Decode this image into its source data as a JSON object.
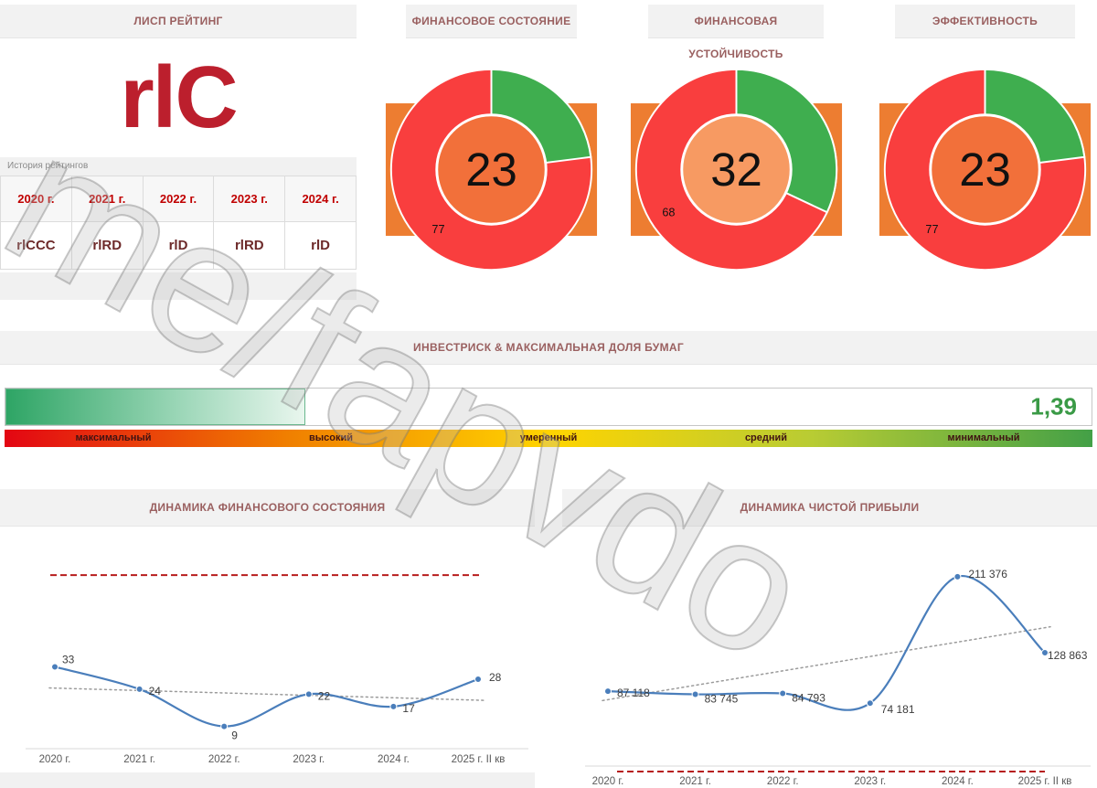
{
  "watermark": "t.me/fapvdo",
  "colors": {
    "accent_red": "#bc1f2d",
    "header_text": "#9a6060",
    "line_blue": "#4a7ebb",
    "ref_line_red": "#b71c1c",
    "gauge_value_green": "#3a9a46",
    "donut_red": "#f93e3e",
    "donut_green": "#3fae4f",
    "donut_bg_orange": "#ed7d31"
  },
  "rating": {
    "title": "ЛИСП РЕЙТИНГ",
    "current": "rlC",
    "history_label": "История рейтингов",
    "history": [
      {
        "year": "2020 г.",
        "value": "rlCCC"
      },
      {
        "year": "2021 г.",
        "value": "rlRD"
      },
      {
        "year": "2022 г.",
        "value": "rlD"
      },
      {
        "year": "2023 г.",
        "value": "rlRD"
      },
      {
        "year": "2024 г.",
        "value": "rlD"
      }
    ]
  },
  "chart_data": [
    {
      "id": "financial_state",
      "type": "pie",
      "title": "ФИНАНСОВОЕ СОСТОЯНИЕ",
      "slices": [
        {
          "label": "23",
          "value": 23,
          "color": "#3fae4f"
        },
        {
          "label": "77",
          "value": 77,
          "color": "#f93e3e"
        }
      ],
      "center_label": "23",
      "center_color": "#f2703a",
      "background_square_color": "#ed7d31"
    },
    {
      "id": "financial_stability",
      "type": "pie",
      "title": "ФИНАНСОВАЯ УСТОЙЧИВОСТЬ",
      "slices": [
        {
          "label": "32",
          "value": 32,
          "color": "#3fae4f"
        },
        {
          "label": "68",
          "value": 68,
          "color": "#f93e3e"
        }
      ],
      "center_label": "32",
      "center_color": "#f79a62",
      "background_square_color": "#ed7d31"
    },
    {
      "id": "efficiency",
      "type": "pie",
      "title": "ЭФФЕКТИВНОСТЬ",
      "slices": [
        {
          "label": "23",
          "value": 23,
          "color": "#3fae4f"
        },
        {
          "label": "77",
          "value": 77,
          "color": "#f93e3e"
        }
      ],
      "center_label": "23",
      "center_color": "#f2703a",
      "background_square_color": "#ed7d31"
    },
    {
      "id": "invest_risk",
      "type": "gauge",
      "title": "ИНВЕСТРИСК & МАКСИМАЛЬНАЯ ДОЛЯ БУМАГ",
      "value_label": "1,39",
      "fill_percent": 27.6,
      "scale_labels": [
        "максимальный",
        "высокий",
        "умеренный",
        "средний",
        "минимальный"
      ]
    },
    {
      "id": "financial_state_dynamics",
      "type": "line",
      "title": "ДИНАМИКА ФИНАНСОВОГО СОСТОЯНИЯ",
      "categories": [
        "2020 г.",
        "2021 г.",
        "2022 г.",
        "2023 г.",
        "2024 г.",
        "2025 г. II кв"
      ],
      "values": [
        33,
        24,
        9,
        22,
        17,
        28
      ],
      "point_labels": [
        "33",
        "24",
        "9",
        "22",
        "17",
        "28"
      ],
      "ylim": [
        0,
        80
      ],
      "grid": false,
      "legend": false,
      "ref_line_value": 70,
      "trend_endpoints": [
        24.5,
        19.5
      ],
      "line_color": "#4a7ebb"
    },
    {
      "id": "net_profit_dynamics",
      "type": "line",
      "title": "ДИНАМИКА ЧИСТОЙ ПРИБЫЛИ",
      "categories": [
        "2020 г.",
        "2021 г.",
        "2022 г.",
        "2023 г.",
        "2024 г.",
        "2025 г. II кв"
      ],
      "values": [
        87118,
        83745,
        84793,
        74181,
        211376,
        128863
      ],
      "point_labels": [
        "87 118",
        "83 745",
        "84 793",
        "74 181",
        "211 376",
        "128 863"
      ],
      "ylim": [
        0,
        235000
      ],
      "grid": false,
      "legend": false,
      "ref_line_value": 0,
      "trend_endpoints": [
        77000,
        157000
      ],
      "line_color": "#4a7ebb"
    }
  ]
}
